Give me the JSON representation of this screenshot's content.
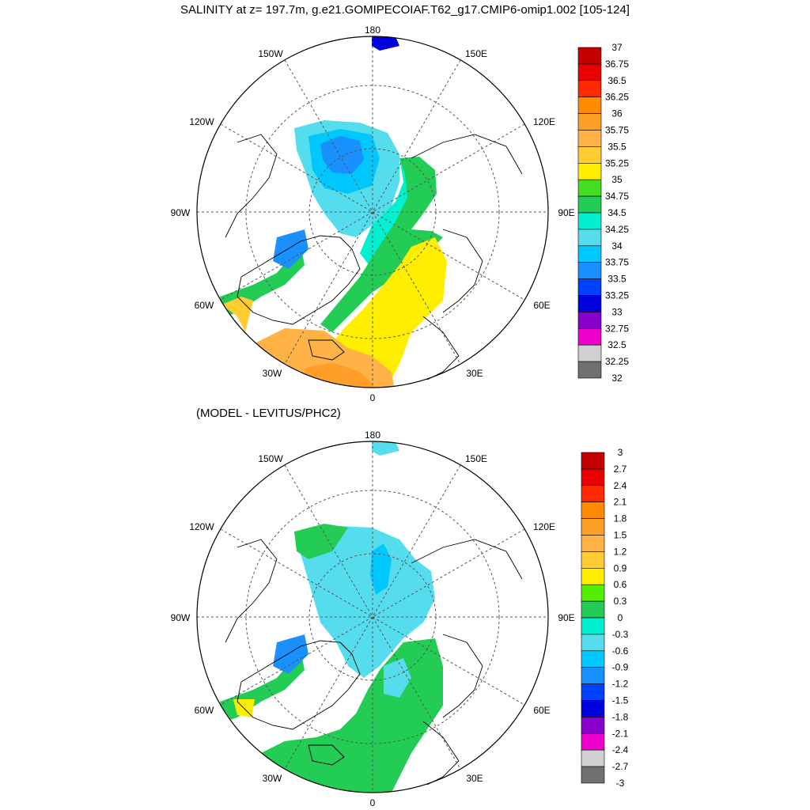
{
  "figure": {
    "title": "SALINITY at z= 197.7m, g.e21.GOMIPECOIAF.T62_g17.CMIP6-omip1.002 [105-124]",
    "subtitle": "(MODEL - LEVITUS/PHC2)"
  },
  "longitude_labels": {
    "top": "180",
    "bottom": "0",
    "upper_left": "150W",
    "upper_right": "150E",
    "mid_upper_left": "120W",
    "mid_upper_right": "120E",
    "left": "90W",
    "right": "90E",
    "mid_lower_left": "60W",
    "mid_lower_right": "60E",
    "lower_left": "30W",
    "lower_right": "30E"
  },
  "panels": [
    {
      "name": "salinity",
      "colorbar": {
        "labels": [
          "37",
          "36.75",
          "36.5",
          "36.25",
          "36",
          "35.75",
          "35.5",
          "35.25",
          "35",
          "34.75",
          "34.5",
          "34.25",
          "34",
          "33.75",
          "33.5",
          "33.25",
          "33",
          "32.75",
          "32.5",
          "32.25",
          "32"
        ],
        "colors": [
          "#c40000",
          "#e80000",
          "#ff2a00",
          "#ff8c00",
          "#ff9f2a",
          "#ffb347",
          "#ffcc33",
          "#ffee00",
          "#44dd22",
          "#22cc55",
          "#00f0d0",
          "#55ddee",
          "#00c8ff",
          "#1a90ff",
          "#0040ff",
          "#0000dd",
          "#8800cc",
          "#ee00cc",
          "#d0d0d0",
          "#707070"
        ]
      }
    },
    {
      "name": "difference",
      "colorbar": {
        "labels": [
          "3",
          "2.7",
          "2.4",
          "2.1",
          "1.8",
          "1.5",
          "1.2",
          "0.9",
          "0.6",
          "0.3",
          "0",
          "-0.3",
          "-0.6",
          "-0.9",
          "-1.2",
          "-1.5",
          "-1.8",
          "-2.1",
          "-2.4",
          "-2.7",
          "-3"
        ],
        "colors": [
          "#c40000",
          "#e80000",
          "#ff2a00",
          "#ff8c00",
          "#ff9f2a",
          "#ffb347",
          "#ffcc33",
          "#ffee00",
          "#55ee00",
          "#22cc55",
          "#00f0d0",
          "#55ddee",
          "#00c8ff",
          "#1a90ff",
          "#0040ff",
          "#0000dd",
          "#8800cc",
          "#ee00cc",
          "#d0d0d0",
          "#707070"
        ]
      }
    }
  ]
}
